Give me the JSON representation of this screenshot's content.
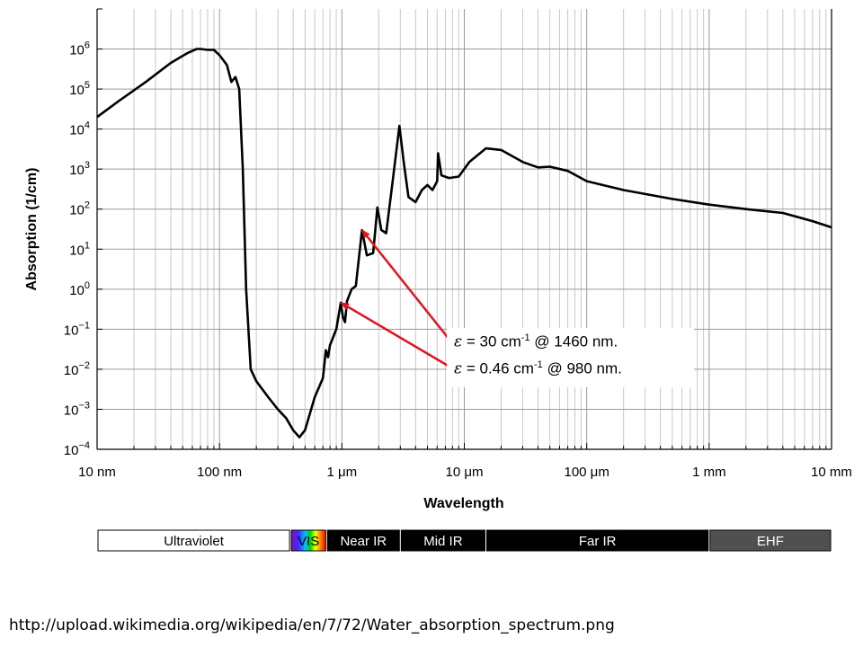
{
  "chart_data": {
    "type": "line",
    "title": "",
    "xlabel": "Wavelength",
    "ylabel": "Absorption (1/cm)",
    "xscale": "log",
    "yscale": "log",
    "xlim": [
      1e-08,
      0.01
    ],
    "ylim": [
      0.0001,
      10000000.0
    ],
    "grid": true,
    "x_tick_labels": [
      "10 nm",
      "100 nm",
      "1 μm",
      "10 μm",
      "100 μm",
      "1 mm",
      "10 mm"
    ],
    "y_tick_labels": [
      {
        "base": "10",
        "exp": "−4"
      },
      {
        "base": "10",
        "exp": "−3"
      },
      {
        "base": "10",
        "exp": "−2"
      },
      {
        "base": "10",
        "exp": "−1"
      },
      {
        "base": "10",
        "exp": "0"
      },
      {
        "base": "10",
        "exp": "1"
      },
      {
        "base": "10",
        "exp": "2"
      },
      {
        "base": "10",
        "exp": "3"
      },
      {
        "base": "10",
        "exp": "4"
      },
      {
        "base": "10",
        "exp": "5"
      },
      {
        "base": "10",
        "exp": "6"
      }
    ],
    "series": [
      {
        "color": "#000000",
        "points": [
          [
            1e-08,
            20000
          ],
          [
            1.5e-08,
            50000
          ],
          [
            2.5e-08,
            150000
          ],
          [
            4e-08,
            450000
          ],
          [
            5.5e-08,
            800000
          ],
          [
            6.5e-08,
            1000000
          ],
          [
            7e-08,
            1000000
          ],
          [
            8e-08,
            950000
          ],
          [
            9e-08,
            950000
          ],
          [
            1e-07,
            700000
          ],
          [
            1.15e-07,
            400000
          ],
          [
            1.25e-07,
            150000
          ],
          [
            1.35e-07,
            200000
          ],
          [
            1.45e-07,
            100000
          ],
          [
            1.55e-07,
            1000
          ],
          [
            1.65e-07,
            1
          ],
          [
            1.8e-07,
            0.01
          ],
          [
            2e-07,
            0.005
          ],
          [
            2.5e-07,
            0.002
          ],
          [
            3e-07,
            0.001
          ],
          [
            3.5e-07,
            0.0006
          ],
          [
            4e-07,
            0.0003
          ],
          [
            4.5e-07,
            0.0002
          ],
          [
            5e-07,
            0.0003
          ],
          [
            6e-07,
            0.002
          ],
          [
            7e-07,
            0.006
          ],
          [
            7.4e-07,
            0.03
          ],
          [
            7.7e-07,
            0.02
          ],
          [
            8e-07,
            0.04
          ],
          [
            9e-07,
            0.1
          ],
          [
            9.8e-07,
            0.46
          ],
          [
            1.02e-06,
            0.2
          ],
          [
            1.06e-06,
            0.15
          ],
          [
            1.1e-06,
            0.5
          ],
          [
            1.2e-06,
            1
          ],
          [
            1.3e-06,
            1.2
          ],
          [
            1.46e-06,
            30
          ],
          [
            1.6e-06,
            7
          ],
          [
            1.8e-06,
            8
          ],
          [
            1.95e-06,
            110
          ],
          [
            2.1e-06,
            30
          ],
          [
            2.3e-06,
            25
          ],
          [
            2.6e-06,
            500
          ],
          [
            2.95e-06,
            12000
          ],
          [
            3.2e-06,
            1500
          ],
          [
            3.5e-06,
            200
          ],
          [
            4e-06,
            150
          ],
          [
            4.5e-06,
            300
          ],
          [
            5e-06,
            400
          ],
          [
            5.5e-06,
            300
          ],
          [
            6e-06,
            500
          ],
          [
            6.1e-06,
            2500
          ],
          [
            6.5e-06,
            700
          ],
          [
            7.5e-06,
            600
          ],
          [
            9e-06,
            650
          ],
          [
            1.1e-05,
            1500
          ],
          [
            1.5e-05,
            3300
          ],
          [
            2e-05,
            3000
          ],
          [
            3e-05,
            1500
          ],
          [
            4e-05,
            1100
          ],
          [
            5e-05,
            1150
          ],
          [
            7e-05,
            900
          ],
          [
            0.0001,
            500
          ],
          [
            0.0002,
            300
          ],
          [
            0.0005,
            180
          ],
          [
            0.001,
            130
          ],
          [
            0.002,
            100
          ],
          [
            0.004,
            80
          ],
          [
            0.007,
            50
          ],
          [
            0.01,
            35
          ]
        ]
      }
    ],
    "annotations": [
      {
        "text_prefix": "ε",
        "text_main": " = 30 cm",
        "text_exp": "-1",
        "text_suffix": " @ 1460 nm.",
        "points_to": [
          1.46e-06,
          30
        ]
      },
      {
        "text_prefix": "ε",
        "text_main": " = 0.46 cm",
        "text_exp": "-1",
        "text_suffix": " @ 980 nm.",
        "points_to": [
          9.8e-07,
          0.46
        ]
      }
    ],
    "arrow_color": "#e0141a",
    "bands": [
      {
        "label": "Ultraviolet",
        "from": 1e-08,
        "to": 3.8e-07,
        "fill": "#ffffff",
        "text": "#000000"
      },
      {
        "label": "VIS",
        "from": 3.8e-07,
        "to": 7.5e-07,
        "fill": "spectrum",
        "text": "#000000"
      },
      {
        "label": "Near IR",
        "from": 7.5e-07,
        "to": 3e-06,
        "fill": "#000000",
        "text": "#ffffff"
      },
      {
        "label": "Mid IR",
        "from": 3e-06,
        "to": 1.5e-05,
        "fill": "#000000",
        "text": "#ffffff"
      },
      {
        "label": "Far IR",
        "from": 1.5e-05,
        "to": 0.001,
        "fill": "#000000",
        "text": "#ffffff"
      },
      {
        "label": "EHF",
        "from": 0.001,
        "to": 0.01,
        "fill": "#505050",
        "text": "#ffffff"
      }
    ]
  },
  "source_url": "http://upload.wikimedia.org/wikipedia/en/7/72/Water_absorption_spectrum.png"
}
